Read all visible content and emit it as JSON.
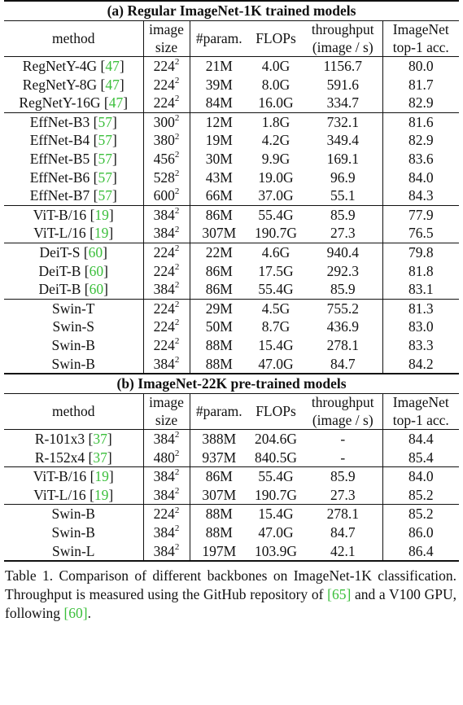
{
  "columns": {
    "method": "method",
    "image_size_1": "image",
    "image_size_2": "size",
    "params": "#param.",
    "flops": "FLOPs",
    "throughput_1": "throughput",
    "throughput_2": "(image / s)",
    "acc_1": "ImageNet",
    "acc_2": "top-1 acc."
  },
  "section_a": {
    "title": "(a) Regular ImageNet-1K trained models",
    "groups": [
      [
        {
          "name": "RegNetY-4G",
          "cite": "47",
          "size": "224",
          "params": "21M",
          "flops": "4.0G",
          "throughput": "1156.7",
          "acc": "80.0"
        },
        {
          "name": "RegNetY-8G",
          "cite": "47",
          "size": "224",
          "params": "39M",
          "flops": "8.0G",
          "throughput": "591.6",
          "acc": "81.7"
        },
        {
          "name": "RegNetY-16G",
          "cite": "47",
          "size": "224",
          "params": "84M",
          "flops": "16.0G",
          "throughput": "334.7",
          "acc": "82.9"
        }
      ],
      [
        {
          "name": "EffNet-B3",
          "cite": "57",
          "size": "300",
          "params": "12M",
          "flops": "1.8G",
          "throughput": "732.1",
          "acc": "81.6"
        },
        {
          "name": "EffNet-B4",
          "cite": "57",
          "size": "380",
          "params": "19M",
          "flops": "4.2G",
          "throughput": "349.4",
          "acc": "82.9"
        },
        {
          "name": "EffNet-B5",
          "cite": "57",
          "size": "456",
          "params": "30M",
          "flops": "9.9G",
          "throughput": "169.1",
          "acc": "83.6"
        },
        {
          "name": "EffNet-B6",
          "cite": "57",
          "size": "528",
          "params": "43M",
          "flops": "19.0G",
          "throughput": "96.9",
          "acc": "84.0"
        },
        {
          "name": "EffNet-B7",
          "cite": "57",
          "size": "600",
          "params": "66M",
          "flops": "37.0G",
          "throughput": "55.1",
          "acc": "84.3"
        }
      ],
      [
        {
          "name": "ViT-B/16",
          "cite": "19",
          "size": "384",
          "params": "86M",
          "flops": "55.4G",
          "throughput": "85.9",
          "acc": "77.9"
        },
        {
          "name": "ViT-L/16",
          "cite": "19",
          "size": "384",
          "params": "307M",
          "flops": "190.7G",
          "throughput": "27.3",
          "acc": "76.5"
        }
      ],
      [
        {
          "name": "DeiT-S",
          "cite": "60",
          "size": "224",
          "params": "22M",
          "flops": "4.6G",
          "throughput": "940.4",
          "acc": "79.8"
        },
        {
          "name": "DeiT-B",
          "cite": "60",
          "size": "224",
          "params": "86M",
          "flops": "17.5G",
          "throughput": "292.3",
          "acc": "81.8"
        },
        {
          "name": "DeiT-B",
          "cite": "60",
          "size": "384",
          "params": "86M",
          "flops": "55.4G",
          "throughput": "85.9",
          "acc": "83.1"
        }
      ],
      [
        {
          "name": "Swin-T",
          "cite": "",
          "size": "224",
          "params": "29M",
          "flops": "4.5G",
          "throughput": "755.2",
          "acc": "81.3"
        },
        {
          "name": "Swin-S",
          "cite": "",
          "size": "224",
          "params": "50M",
          "flops": "8.7G",
          "throughput": "436.9",
          "acc": "83.0"
        },
        {
          "name": "Swin-B",
          "cite": "",
          "size": "224",
          "params": "88M",
          "flops": "15.4G",
          "throughput": "278.1",
          "acc": "83.3"
        },
        {
          "name": "Swin-B",
          "cite": "",
          "size": "384",
          "params": "88M",
          "flops": "47.0G",
          "throughput": "84.7",
          "acc": "84.2"
        }
      ]
    ]
  },
  "section_b": {
    "title": "(b) ImageNet-22K pre-trained models",
    "groups": [
      [
        {
          "name": "R-101x3",
          "cite": "37",
          "size": "384",
          "params": "388M",
          "flops": "204.6G",
          "throughput": "-",
          "acc": "84.4"
        },
        {
          "name": "R-152x4",
          "cite": "37",
          "size": "480",
          "params": "937M",
          "flops": "840.5G",
          "throughput": "-",
          "acc": "85.4"
        }
      ],
      [
        {
          "name": "ViT-B/16",
          "cite": "19",
          "size": "384",
          "params": "86M",
          "flops": "55.4G",
          "throughput": "85.9",
          "acc": "84.0"
        },
        {
          "name": "ViT-L/16",
          "cite": "19",
          "size": "384",
          "params": "307M",
          "flops": "190.7G",
          "throughput": "27.3",
          "acc": "85.2"
        }
      ],
      [
        {
          "name": "Swin-B",
          "cite": "",
          "size": "224",
          "params": "88M",
          "flops": "15.4G",
          "throughput": "278.1",
          "acc": "85.2"
        },
        {
          "name": "Swin-B",
          "cite": "",
          "size": "384",
          "params": "88M",
          "flops": "47.0G",
          "throughput": "84.7",
          "acc": "86.0"
        },
        {
          "name": "Swin-L",
          "cite": "",
          "size": "384",
          "params": "197M",
          "flops": "103.9G",
          "throughput": "42.1",
          "acc": "86.4"
        }
      ]
    ]
  },
  "size_exponent": "2",
  "caption": {
    "part1": "Table 1. Comparison of different backbones on ImageNet-1K classification.  Throughput is measured using the GitHub repository of ",
    "cite1": "[65]",
    "part2": " and a V100 GPU, following ",
    "cite2": "[60]",
    "part3": "."
  }
}
